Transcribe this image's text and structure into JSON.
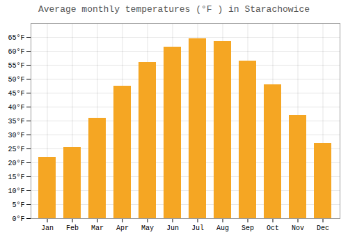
{
  "chart_data": {
    "type": "bar",
    "title": "Average monthly temperatures (°F ) in Starachowice",
    "categories": [
      "Jan",
      "Feb",
      "Mar",
      "Apr",
      "May",
      "Jun",
      "Jul",
      "Aug",
      "Sep",
      "Oct",
      "Nov",
      "Dec"
    ],
    "values": [
      22,
      25.5,
      36,
      47.5,
      56,
      61.5,
      64.5,
      63.5,
      56.5,
      48,
      37,
      27
    ],
    "color": "#F5A623",
    "ylim": [
      0,
      70
    ],
    "yticks": [
      {
        "value": 0,
        "label": "0°F"
      },
      {
        "value": 5,
        "label": "5°F"
      },
      {
        "value": 10,
        "label": "10°F"
      },
      {
        "value": 15,
        "label": "15°F"
      },
      {
        "value": 20,
        "label": "20°F"
      },
      {
        "value": 25,
        "label": "25°F"
      },
      {
        "value": 30,
        "label": "30°F"
      },
      {
        "value": 35,
        "label": "35°F"
      },
      {
        "value": 40,
        "label": "40°F"
      },
      {
        "value": 45,
        "label": "45°F"
      },
      {
        "value": 50,
        "label": "50°F"
      },
      {
        "value": 55,
        "label": "55°F"
      },
      {
        "value": 60,
        "label": "60°F"
      },
      {
        "value": 65,
        "label": "65°F"
      }
    ],
    "grid": true
  }
}
